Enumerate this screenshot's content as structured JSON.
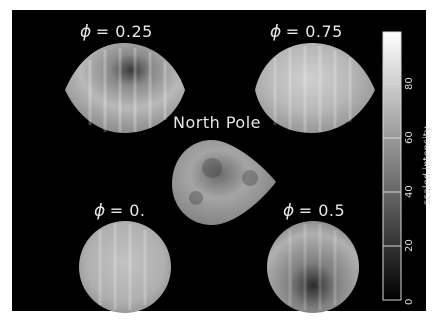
{
  "panels": [
    {
      "id": "p025",
      "phi_symbol": "ϕ",
      "label": "= 0.25"
    },
    {
      "id": "p075",
      "phi_symbol": "ϕ",
      "label": "= 0.75"
    },
    {
      "id": "pnorth",
      "label": "North Pole"
    },
    {
      "id": "p0",
      "phi_symbol": "ϕ",
      "label": "= 0."
    },
    {
      "id": "p05",
      "phi_symbol": "ϕ",
      "label": "= 0.5"
    }
  ],
  "colorbar": {
    "title": "scaled intensity",
    "ticks": [
      "0",
      "20",
      "40",
      "60",
      "80"
    ],
    "range": [
      0,
      100
    ]
  }
}
